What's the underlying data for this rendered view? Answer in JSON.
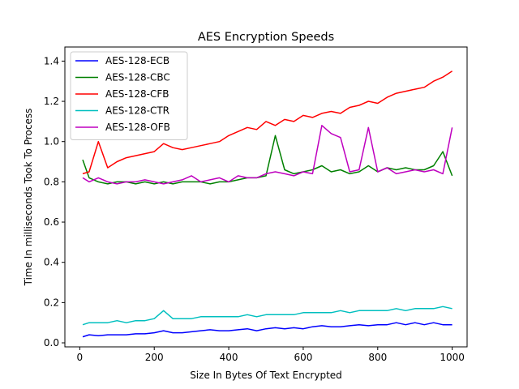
{
  "chart_data": {
    "type": "line",
    "title": "AES Encryption Speeds",
    "xlabel": "Size In Bytes Of Text Encrypted",
    "ylabel": "Time In milliseconds Took To Process",
    "xlim": [
      -40,
      1040
    ],
    "ylim": [
      -0.02,
      1.47
    ],
    "xticks": [
      0,
      200,
      400,
      600,
      800,
      1000
    ],
    "yticks": [
      0.0,
      0.2,
      0.4,
      0.6,
      0.8,
      1.0,
      1.2,
      1.4
    ],
    "legend_position": "upper-left",
    "grid": false,
    "series": [
      {
        "name": "AES-128-ECB",
        "color": "#0000ff",
        "x": [
          8,
          25,
          50,
          75,
          100,
          125,
          150,
          175,
          200,
          225,
          250,
          275,
          300,
          325,
          350,
          375,
          400,
          425,
          450,
          475,
          500,
          525,
          550,
          575,
          600,
          625,
          650,
          675,
          700,
          725,
          750,
          775,
          800,
          825,
          850,
          875,
          900,
          925,
          950,
          975,
          1000
        ],
        "y": [
          0.03,
          0.04,
          0.035,
          0.04,
          0.04,
          0.04,
          0.045,
          0.045,
          0.05,
          0.06,
          0.05,
          0.05,
          0.055,
          0.06,
          0.065,
          0.06,
          0.06,
          0.065,
          0.07,
          0.06,
          0.07,
          0.075,
          0.07,
          0.075,
          0.07,
          0.08,
          0.085,
          0.08,
          0.08,
          0.085,
          0.09,
          0.085,
          0.09,
          0.09,
          0.1,
          0.09,
          0.1,
          0.09,
          0.1,
          0.09,
          0.09
        ]
      },
      {
        "name": "AES-128-CBC",
        "color": "#008000",
        "x": [
          8,
          25,
          50,
          75,
          100,
          125,
          150,
          175,
          200,
          225,
          250,
          275,
          300,
          325,
          350,
          375,
          400,
          425,
          450,
          475,
          500,
          525,
          550,
          575,
          600,
          625,
          650,
          675,
          700,
          725,
          750,
          775,
          800,
          825,
          850,
          875,
          900,
          925,
          950,
          975,
          1000
        ],
        "y": [
          0.91,
          0.82,
          0.8,
          0.79,
          0.8,
          0.8,
          0.79,
          0.8,
          0.79,
          0.8,
          0.79,
          0.8,
          0.8,
          0.8,
          0.79,
          0.8,
          0.8,
          0.81,
          0.82,
          0.82,
          0.83,
          1.03,
          0.86,
          0.84,
          0.85,
          0.86,
          0.88,
          0.85,
          0.86,
          0.84,
          0.85,
          0.88,
          0.85,
          0.87,
          0.86,
          0.87,
          0.86,
          0.86,
          0.88,
          0.95,
          0.83
        ]
      },
      {
        "name": "AES-128-CFB",
        "color": "#ff0000",
        "x": [
          8,
          25,
          50,
          75,
          100,
          125,
          150,
          175,
          200,
          225,
          250,
          275,
          300,
          325,
          350,
          375,
          400,
          425,
          450,
          475,
          500,
          525,
          550,
          575,
          600,
          625,
          650,
          675,
          700,
          725,
          750,
          775,
          800,
          825,
          850,
          875,
          900,
          925,
          950,
          975,
          1000
        ],
        "y": [
          0.84,
          0.85,
          1.0,
          0.87,
          0.9,
          0.92,
          0.93,
          0.94,
          0.95,
          0.99,
          0.97,
          0.96,
          0.97,
          0.98,
          0.99,
          1.0,
          1.03,
          1.05,
          1.07,
          1.06,
          1.1,
          1.08,
          1.11,
          1.1,
          1.13,
          1.12,
          1.14,
          1.15,
          1.14,
          1.17,
          1.18,
          1.2,
          1.19,
          1.22,
          1.24,
          1.25,
          1.26,
          1.27,
          1.3,
          1.32,
          1.35
        ]
      },
      {
        "name": "AES-128-CTR",
        "color": "#00bfbf",
        "x": [
          8,
          25,
          50,
          75,
          100,
          125,
          150,
          175,
          200,
          225,
          250,
          275,
          300,
          325,
          350,
          375,
          400,
          425,
          450,
          475,
          500,
          525,
          550,
          575,
          600,
          625,
          650,
          675,
          700,
          725,
          750,
          775,
          800,
          825,
          850,
          875,
          900,
          925,
          950,
          975,
          1000
        ],
        "y": [
          0.09,
          0.1,
          0.1,
          0.1,
          0.11,
          0.1,
          0.11,
          0.11,
          0.12,
          0.16,
          0.12,
          0.12,
          0.12,
          0.13,
          0.13,
          0.13,
          0.13,
          0.13,
          0.14,
          0.13,
          0.14,
          0.14,
          0.14,
          0.14,
          0.15,
          0.15,
          0.15,
          0.15,
          0.16,
          0.15,
          0.16,
          0.16,
          0.16,
          0.16,
          0.17,
          0.16,
          0.17,
          0.17,
          0.17,
          0.18,
          0.17
        ]
      },
      {
        "name": "AES-128-OFB",
        "color": "#bf00bf",
        "x": [
          8,
          25,
          50,
          75,
          100,
          125,
          150,
          175,
          200,
          225,
          250,
          275,
          300,
          325,
          350,
          375,
          400,
          425,
          450,
          475,
          500,
          525,
          550,
          575,
          600,
          625,
          650,
          675,
          700,
          725,
          750,
          775,
          800,
          825,
          850,
          875,
          900,
          925,
          950,
          975,
          1000
        ],
        "y": [
          0.82,
          0.8,
          0.82,
          0.8,
          0.79,
          0.8,
          0.8,
          0.81,
          0.8,
          0.79,
          0.8,
          0.81,
          0.83,
          0.8,
          0.81,
          0.82,
          0.8,
          0.83,
          0.82,
          0.82,
          0.84,
          0.85,
          0.84,
          0.83,
          0.85,
          0.84,
          1.08,
          1.04,
          1.02,
          0.85,
          0.86,
          1.07,
          0.85,
          0.87,
          0.84,
          0.85,
          0.86,
          0.85,
          0.86,
          0.84,
          1.07
        ]
      }
    ]
  }
}
